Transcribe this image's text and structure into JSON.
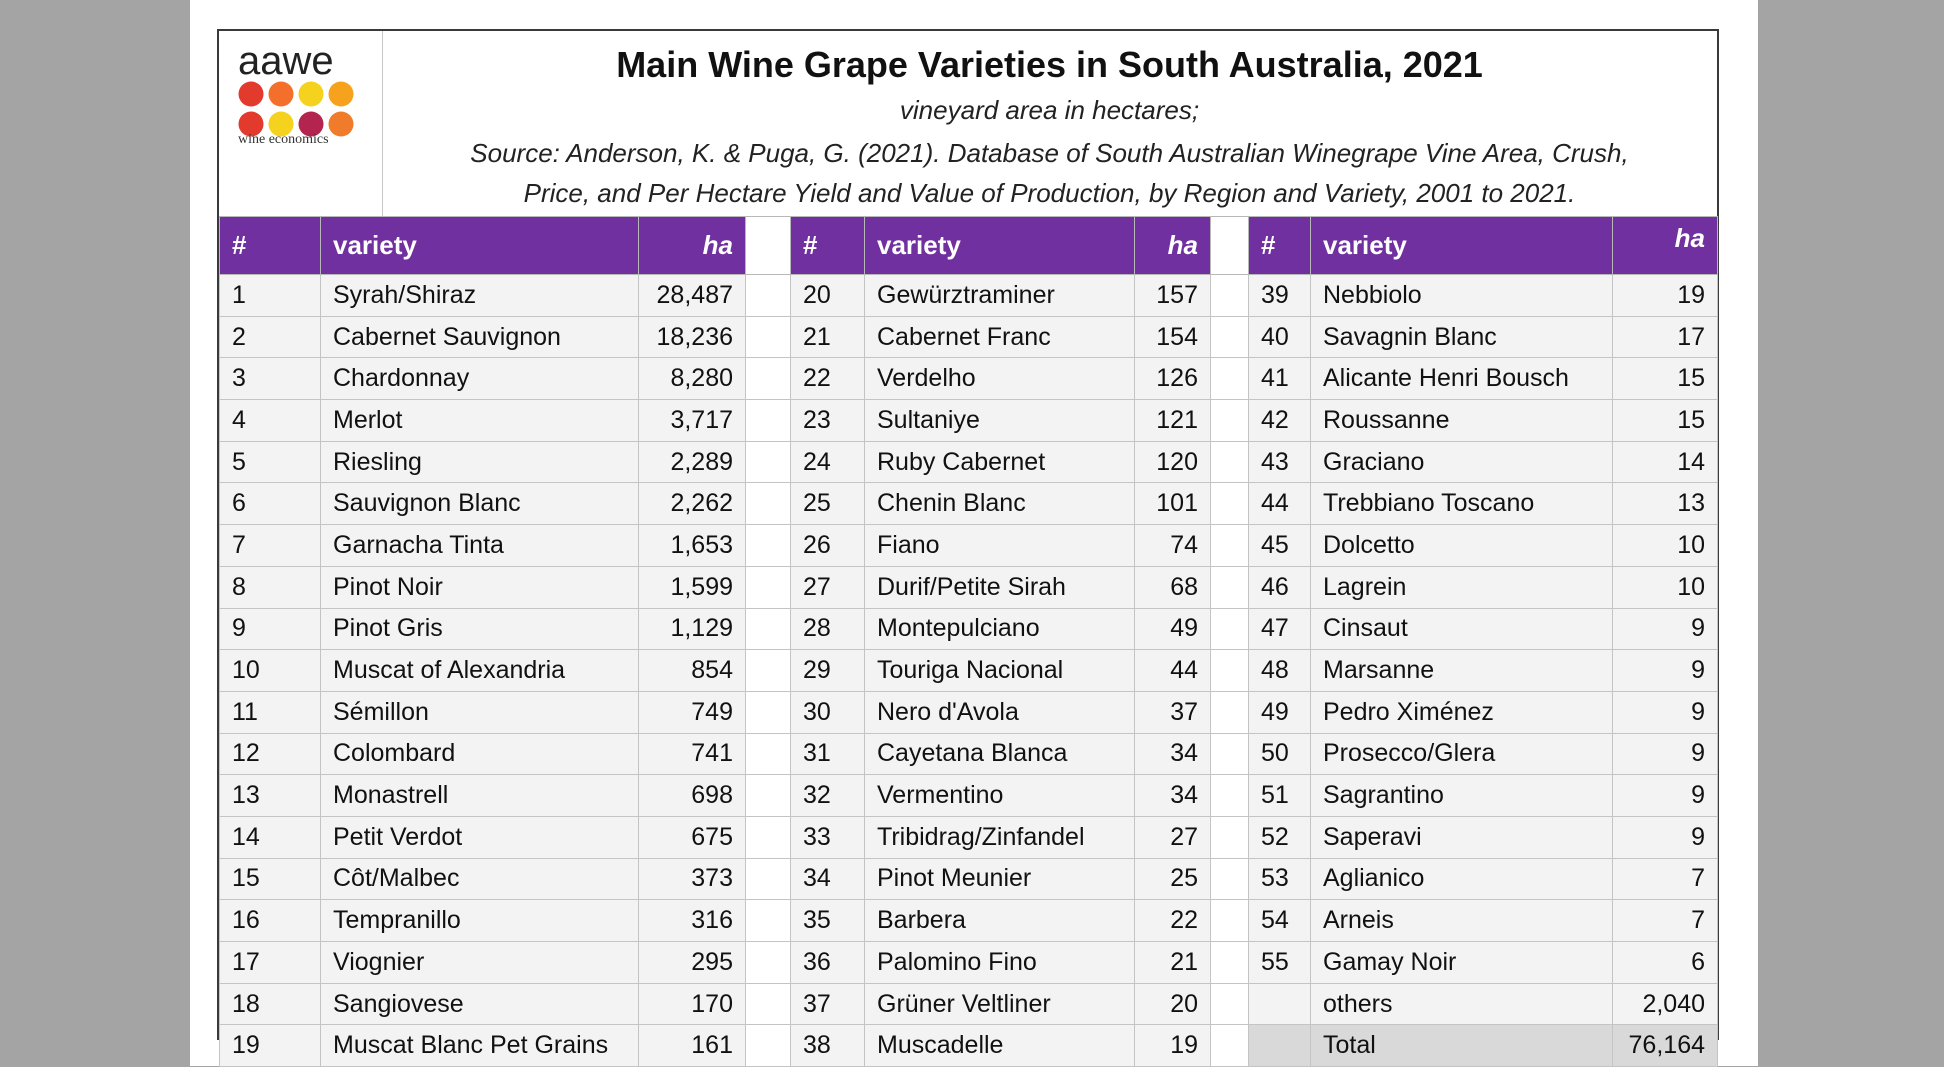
{
  "header": {
    "logo_word": "aawe",
    "logo_sub": "wine economics",
    "logo_colors": [
      "#e23b2e",
      "#f36f2b",
      "#f5d21e",
      "#f6a21d",
      "#e23b2e",
      "#f5d21e",
      "#b3244e",
      "#f07b2a"
    ],
    "title": "Main Wine Grape Varieties in South Australia, 2021",
    "subtitle": "vineyard area in hectares;",
    "source_line1": "Source: Anderson, K. & Puga, G. (2021). Database of South Australian Winegrape Vine Area, Crush,",
    "source_line2": "Price, and Per Hectare Yield and Value of Production, by Region and Variety, 2001 to 2021."
  },
  "columns": {
    "num": "#",
    "variety": "variety",
    "ha": "ha"
  },
  "colors": {
    "header_bg": "#7030a0",
    "cell_bg": "#f3f3f3",
    "total_bg": "#d9d9d9"
  },
  "rows": [
    {
      "a": [
        "1",
        "Syrah/Shiraz",
        "28,487"
      ],
      "b": [
        "20",
        "Gewürztraminer",
        "157"
      ],
      "c": [
        "39",
        "Nebbiolo",
        "19"
      ]
    },
    {
      "a": [
        "2",
        "Cabernet Sauvignon",
        "18,236"
      ],
      "b": [
        "21",
        "Cabernet Franc",
        "154"
      ],
      "c": [
        "40",
        "Savagnin Blanc",
        "17"
      ]
    },
    {
      "a": [
        "3",
        "Chardonnay",
        "8,280"
      ],
      "b": [
        "22",
        "Verdelho",
        "126"
      ],
      "c": [
        "41",
        "Alicante Henri Bousch",
        "15"
      ]
    },
    {
      "a": [
        "4",
        "Merlot",
        "3,717"
      ],
      "b": [
        "23",
        "Sultaniye",
        "121"
      ],
      "c": [
        "42",
        "Roussanne",
        "15"
      ]
    },
    {
      "a": [
        "5",
        "Riesling",
        "2,289"
      ],
      "b": [
        "24",
        "Ruby Cabernet",
        "120"
      ],
      "c": [
        "43",
        "Graciano",
        "14"
      ]
    },
    {
      "a": [
        "6",
        "Sauvignon Blanc",
        "2,262"
      ],
      "b": [
        "25",
        "Chenin Blanc",
        "101"
      ],
      "c": [
        "44",
        "Trebbiano Toscano",
        "13"
      ]
    },
    {
      "a": [
        "7",
        "Garnacha Tinta",
        "1,653"
      ],
      "b": [
        "26",
        "Fiano",
        "74"
      ],
      "c": [
        "45",
        "Dolcetto",
        "10"
      ]
    },
    {
      "a": [
        "8",
        "Pinot Noir",
        "1,599"
      ],
      "b": [
        "27",
        "Durif/Petite Sirah",
        "68"
      ],
      "c": [
        "46",
        "Lagrein",
        "10"
      ]
    },
    {
      "a": [
        "9",
        "Pinot Gris",
        "1,129"
      ],
      "b": [
        "28",
        "Montepulciano",
        "49"
      ],
      "c": [
        "47",
        "Cinsaut",
        "9"
      ]
    },
    {
      "a": [
        "10",
        "Muscat of Alexandria",
        "854"
      ],
      "b": [
        "29",
        "Touriga Nacional",
        "44"
      ],
      "c": [
        "48",
        "Marsanne",
        "9"
      ]
    },
    {
      "a": [
        "11",
        "Sémillon",
        "749"
      ],
      "b": [
        "30",
        "Nero d'Avola",
        "37"
      ],
      "c": [
        "49",
        "Pedro Ximénez",
        "9"
      ]
    },
    {
      "a": [
        "12",
        "Colombard",
        "741"
      ],
      "b": [
        "31",
        "Cayetana Blanca",
        "34"
      ],
      "c": [
        "50",
        "Prosecco/Glera",
        "9"
      ]
    },
    {
      "a": [
        "13",
        "Monastrell",
        "698"
      ],
      "b": [
        "32",
        "Vermentino",
        "34"
      ],
      "c": [
        "51",
        "Sagrantino",
        "9"
      ]
    },
    {
      "a": [
        "14",
        "Petit Verdot",
        "675"
      ],
      "b": [
        "33",
        "Tribidrag/Zinfandel",
        "27"
      ],
      "c": [
        "52",
        "Saperavi",
        "9"
      ]
    },
    {
      "a": [
        "15",
        "Côt/Malbec",
        "373"
      ],
      "b": [
        "34",
        "Pinot Meunier",
        "25"
      ],
      "c": [
        "53",
        "Aglianico",
        "7"
      ]
    },
    {
      "a": [
        "16",
        "Tempranillo",
        "316"
      ],
      "b": [
        "35",
        "Barbera",
        "22"
      ],
      "c": [
        "54",
        "Arneis",
        "7"
      ]
    },
    {
      "a": [
        "17",
        "Viognier",
        "295"
      ],
      "b": [
        "36",
        "Palomino Fino",
        "21"
      ],
      "c": [
        "55",
        "Gamay Noir",
        "6"
      ]
    },
    {
      "a": [
        "18",
        "Sangiovese",
        "170"
      ],
      "b": [
        "37",
        "Grüner Veltliner",
        "20"
      ],
      "c": [
        "",
        "others",
        "2,040"
      ]
    },
    {
      "a": [
        "19",
        "Muscat Blanc Pet Grains",
        "161"
      ],
      "b": [
        "38",
        "Muscadelle",
        "19"
      ],
      "c": [
        "",
        "Total",
        "76,164"
      ]
    }
  ]
}
